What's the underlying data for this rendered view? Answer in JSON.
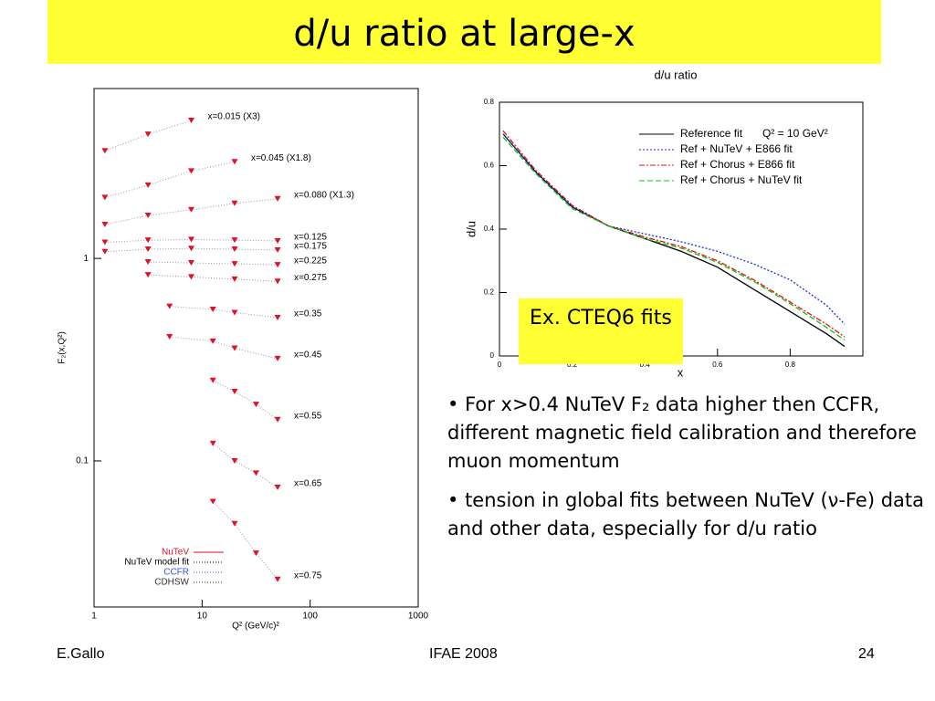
{
  "title": "d/u ratio at large-x",
  "chart_data": [
    {
      "type": "scatter",
      "x_label": "Q² (GeV/c)²",
      "y_label": "F₂(x,Q²)",
      "log_x": true,
      "log_y": true,
      "xlim": [
        1,
        1000
      ],
      "ylim": [
        0.019,
        6.9
      ],
      "xticks": [
        1,
        10,
        100,
        1000
      ],
      "yticks": [
        0.1,
        1
      ],
      "color": "#e0102a",
      "groups": [
        {
          "label": "x=0.015 (X3)",
          "x": [
            1.26,
            3.16,
            7.94
          ],
          "values": [
            3.4,
            4.1,
            4.8
          ]
        },
        {
          "label": "x=0.045 (X1.8)",
          "x": [
            1.26,
            3.16,
            7.94,
            20
          ],
          "values": [
            2.0,
            2.3,
            2.7,
            3.0
          ]
        },
        {
          "label": "x=0.080 (X1.3)",
          "x": [
            1.26,
            3.16,
            7.94,
            20,
            50
          ],
          "values": [
            1.47,
            1.63,
            1.74,
            1.87,
            1.97
          ]
        },
        {
          "label": "x=0.125",
          "x": [
            1.26,
            3.16,
            7.94,
            20,
            50
          ],
          "values": [
            1.2,
            1.23,
            1.24,
            1.23,
            1.22
          ]
        },
        {
          "label": "x=0.175",
          "x": [
            1.26,
            3.16,
            7.94,
            20,
            50
          ],
          "values": [
            1.08,
            1.11,
            1.12,
            1.11,
            1.1
          ]
        },
        {
          "label": "x=0.225",
          "x": [
            3.16,
            7.94,
            20,
            50
          ],
          "values": [
            0.96,
            0.95,
            0.94,
            0.93
          ]
        },
        {
          "label": "x=0.275",
          "x": [
            3.16,
            7.94,
            20,
            50
          ],
          "values": [
            0.83,
            0.81,
            0.79,
            0.77
          ]
        },
        {
          "label": "x=0.35",
          "x": [
            5,
            12.6,
            20,
            50
          ],
          "values": [
            0.58,
            0.56,
            0.54,
            0.51
          ]
        },
        {
          "label": "x=0.45",
          "x": [
            5,
            12.6,
            20,
            50
          ],
          "values": [
            0.41,
            0.39,
            0.36,
            0.32
          ]
        },
        {
          "label": "x=0.55",
          "x": [
            12.6,
            20,
            31.6,
            50
          ],
          "values": [
            0.25,
            0.22,
            0.19,
            0.16
          ]
        },
        {
          "label": "x=0.65",
          "x": [
            12.6,
            20,
            31.6,
            50
          ],
          "values": [
            0.122,
            0.1,
            0.087,
            0.074
          ]
        },
        {
          "label": "x=0.75",
          "x": [
            12.6,
            20,
            31.6,
            50
          ],
          "values": [
            0.063,
            0.049,
            0.035,
            0.026
          ]
        }
      ],
      "legend": [
        {
          "name": "NuTeV",
          "color": "#e0102a"
        },
        {
          "name": "NuTeV model fit",
          "color": "#000000"
        },
        {
          "name": "CCFR",
          "color": "#3050e0"
        },
        {
          "name": "CDHSW",
          "color": "#333333"
        }
      ]
    },
    {
      "type": "line",
      "title": "d/u ratio",
      "x_label": "x",
      "y_label": "d/u",
      "annotation": "Q² = 10 GeV²",
      "xlim": [
        0,
        1
      ],
      "ylim": [
        0,
        0.8
      ],
      "xticks": [
        0,
        0.2,
        0.4,
        0.6,
        0.8
      ],
      "yticks": [
        0,
        0.2,
        0.4,
        0.6,
        0.8
      ],
      "x": [
        0.01,
        0.1,
        0.2,
        0.3,
        0.4,
        0.5,
        0.6,
        0.7,
        0.8,
        0.9,
        0.95
      ],
      "series": [
        {
          "name": "Reference fit",
          "color": "#000000",
          "style": "solid",
          "values": [
            0.7,
            0.58,
            0.47,
            0.41,
            0.37,
            0.33,
            0.28,
            0.21,
            0.14,
            0.07,
            0.03
          ]
        },
        {
          "name": "Ref + NuTeV + E866 fit",
          "color": "#1a2ee0",
          "style": "dotted",
          "values": [
            0.7,
            0.58,
            0.47,
            0.41,
            0.385,
            0.36,
            0.33,
            0.29,
            0.24,
            0.16,
            0.1
          ]
        },
        {
          "name": "Ref + Chorus + E866 fit",
          "color": "#e01010",
          "style": "dashdot",
          "values": [
            0.71,
            0.585,
            0.475,
            0.41,
            0.375,
            0.345,
            0.3,
            0.24,
            0.17,
            0.1,
            0.06
          ]
        },
        {
          "name": "Ref + Chorus + NuTeV fit",
          "color": "#10c010",
          "style": "dashed",
          "values": [
            0.69,
            0.575,
            0.465,
            0.41,
            0.37,
            0.34,
            0.295,
            0.235,
            0.165,
            0.09,
            0.05
          ]
        }
      ]
    }
  ],
  "note": "Ex. CTEQ6 fits",
  "bullets": [
    "For x>0.4 NuTeV F₂ data higher then CCFR, different magnetic field calibration and therefore muon momentum",
    "tension in global fits between NuTeV (ν-Fe) data and other data, especially for d/u ratio"
  ],
  "footer": {
    "left": "E.Gallo",
    "center": "IFAE 2008",
    "right": "24"
  }
}
